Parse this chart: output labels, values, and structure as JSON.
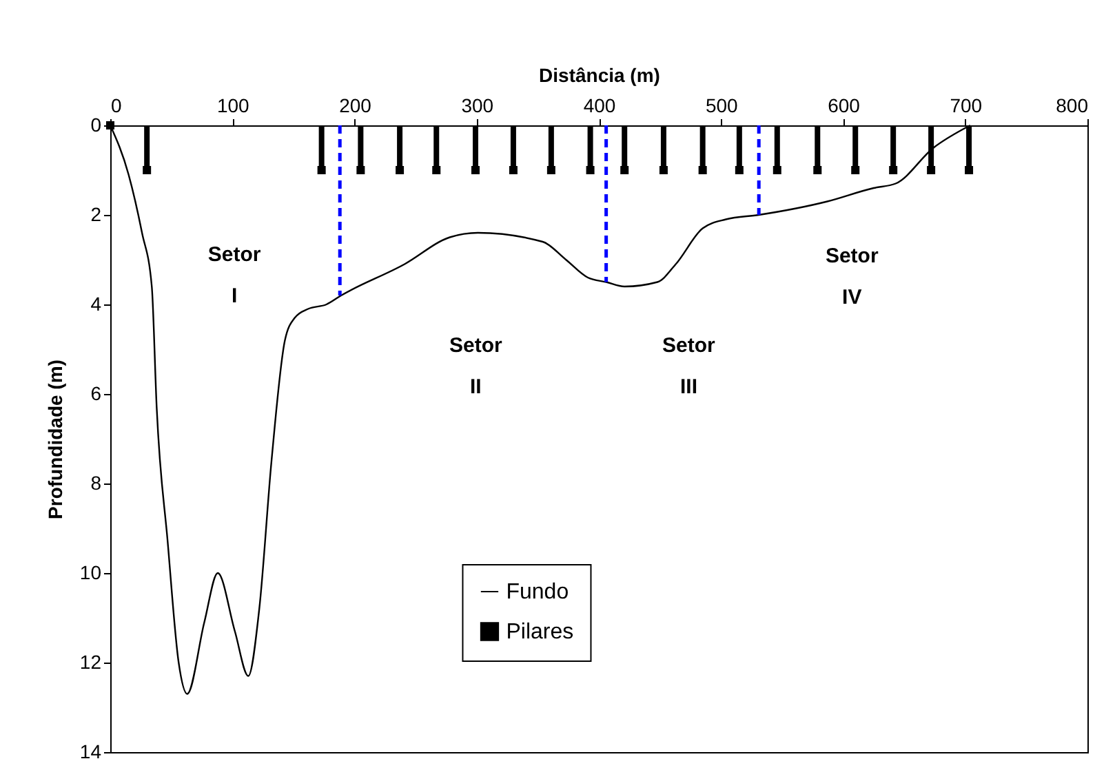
{
  "chart_data": {
    "type": "line",
    "xlabel": "Distância (m)",
    "ylabel": "Profundidade (m)",
    "xlim": [
      0,
      800
    ],
    "xticks": [
      0,
      100,
      200,
      300,
      400,
      500,
      600,
      700,
      800
    ],
    "ylim": [
      14,
      0
    ],
    "yticks": [
      0,
      2,
      4,
      6,
      8,
      10,
      12,
      14
    ],
    "legend": "bottom",
    "annotations": [
      "Setor I",
      "Setor II",
      "Setor III",
      "Setor IV"
    ],
    "series": [
      {
        "name": "Fundo",
        "color": "#000000",
        "line_style": "solid",
        "x": [
          0,
          15,
          26,
          34,
          38,
          47,
          56,
          63,
          77,
          88,
          102,
          113,
          122,
          132,
          143,
          151,
          162,
          177,
          189,
          241,
          278,
          301,
          354,
          373,
          391,
          406,
          421,
          448,
          463,
          485,
          504,
          531,
          587,
          625,
          643,
          674,
          704
        ],
        "values": [
          0,
          1.1,
          2.4,
          3.6,
          6.3,
          9.3,
          12.0,
          12.7,
          11.1,
          10.0,
          11.3,
          12.3,
          10.8,
          7.5,
          4.8,
          4.3,
          4.1,
          4.0,
          3.8,
          3.1,
          2.5,
          2.4,
          2.6,
          3.0,
          3.4,
          3.5,
          3.6,
          3.5,
          3.1,
          2.3,
          2.1,
          2.0,
          1.7,
          1.4,
          1.3,
          0.5,
          0
        ]
      },
      {
        "name": "Pilares",
        "type": "scatter",
        "marker": "square",
        "color": "#000000",
        "x": [
          0,
          30,
          173,
          205,
          237,
          267,
          299,
          330,
          361,
          393,
          421,
          453,
          485,
          515,
          546,
          579,
          610,
          641,
          672,
          703
        ],
        "values": [
          0,
          1,
          1,
          1,
          1,
          1,
          1,
          1,
          1,
          1,
          1,
          1,
          1,
          1,
          1,
          1,
          1,
          1,
          1,
          1
        ],
        "errors": [
          null,
          [
            0,
            1
          ],
          [
            0,
            1
          ],
          [
            0,
            1
          ],
          [
            0,
            1
          ],
          [
            0,
            1
          ],
          [
            0,
            1
          ],
          [
            0,
            1
          ],
          [
            0,
            1
          ],
          [
            0,
            1
          ],
          [
            0,
            1
          ],
          [
            0,
            1
          ],
          [
            0,
            1
          ],
          [
            0,
            1
          ],
          [
            0,
            1
          ],
          [
            0,
            1
          ],
          [
            0,
            1
          ],
          [
            0,
            1
          ],
          [
            0,
            1
          ],
          [
            0,
            1
          ]
        ]
      },
      {
        "color": "#0000ff",
        "line_style": "dashed",
        "x": [
          188,
          188
        ],
        "values": [
          0,
          3.8
        ]
      },
      {
        "color": "#0000ff",
        "line_style": "dashed",
        "x": [
          406,
          406
        ],
        "values": [
          0,
          3.5
        ]
      },
      {
        "color": "#0000ff",
        "line_style": "dashed",
        "x": [
          531,
          531
        ],
        "values": [
          0,
          2.0
        ]
      }
    ]
  }
}
